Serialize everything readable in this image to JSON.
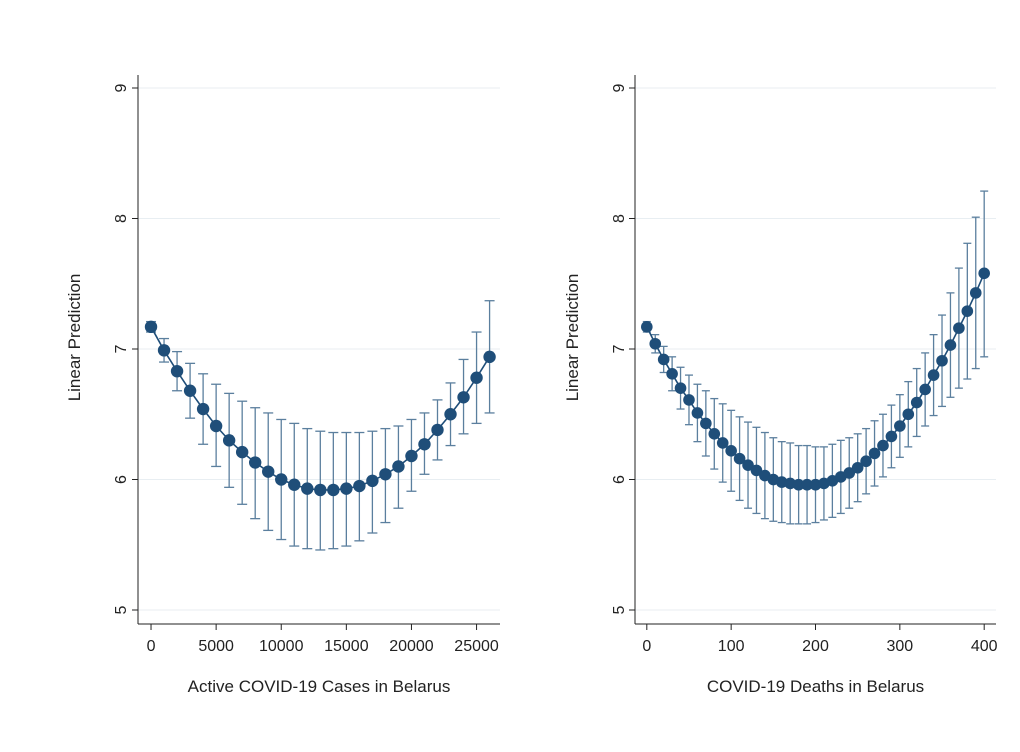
{
  "chart_data": [
    {
      "type": "scatter",
      "title": "",
      "xlabel": "Active COVID-19 Cases in Belarus",
      "ylabel": "Linear Prediction",
      "xlim": [
        -1000,
        26800
      ],
      "ylim": [
        5,
        9
      ],
      "xticks": [
        0,
        5000,
        10000,
        15000,
        20000,
        25000
      ],
      "yticks": [
        5,
        6,
        7,
        8,
        9
      ],
      "grid": true,
      "legend": "none",
      "color": "#1f4e79",
      "errorbar_color": "#5b7f9e",
      "series": [
        {
          "x": [
            0,
            1000,
            2000,
            3000,
            4000,
            5000,
            6000,
            7000,
            8000,
            9000,
            10000,
            11000,
            12000,
            13000,
            14000,
            15000,
            16000,
            17000,
            18000,
            19000,
            20000,
            21000,
            22000,
            23000,
            24000,
            25000,
            26000
          ],
          "y": [
            7.17,
            6.99,
            6.83,
            6.68,
            6.54,
            6.41,
            6.3,
            6.21,
            6.13,
            6.06,
            6.0,
            5.96,
            5.93,
            5.92,
            5.92,
            5.93,
            5.95,
            5.99,
            6.04,
            6.1,
            6.18,
            6.27,
            6.38,
            6.5,
            6.63,
            6.78,
            6.94
          ],
          "lower": [
            7.13,
            6.9,
            6.68,
            6.47,
            6.27,
            6.1,
            5.94,
            5.81,
            5.7,
            5.61,
            5.54,
            5.49,
            5.47,
            5.46,
            5.47,
            5.49,
            5.53,
            5.59,
            5.67,
            5.78,
            5.91,
            6.04,
            6.15,
            6.26,
            6.35,
            6.43,
            6.51
          ],
          "upper": [
            7.21,
            7.08,
            6.98,
            6.89,
            6.81,
            6.73,
            6.66,
            6.6,
            6.55,
            6.51,
            6.46,
            6.43,
            6.39,
            6.37,
            6.36,
            6.36,
            6.36,
            6.37,
            6.39,
            6.41,
            6.46,
            6.51,
            6.61,
            6.74,
            6.92,
            7.13,
            7.37
          ]
        }
      ]
    },
    {
      "type": "scatter",
      "title": "",
      "xlabel": "COVID-19 Deaths in Belarus",
      "ylabel": "Linear Prediction",
      "xlim": [
        -14,
        414
      ],
      "ylim": [
        5,
        9
      ],
      "xticks": [
        0,
        100,
        200,
        300,
        400
      ],
      "yticks": [
        5,
        6,
        7,
        8,
        9
      ],
      "grid": true,
      "legend": "none",
      "color": "#1f4e79",
      "errorbar_color": "#5b7f9e",
      "series": [
        {
          "x": [
            0,
            10,
            20,
            30,
            40,
            50,
            60,
            70,
            80,
            90,
            100,
            110,
            120,
            130,
            140,
            150,
            160,
            170,
            180,
            190,
            200,
            210,
            220,
            230,
            240,
            250,
            260,
            270,
            280,
            290,
            300,
            310,
            320,
            330,
            340,
            350,
            360,
            370,
            380,
            390,
            400
          ],
          "y": [
            7.17,
            7.04,
            6.92,
            6.81,
            6.7,
            6.61,
            6.51,
            6.43,
            6.35,
            6.28,
            6.22,
            6.16,
            6.11,
            6.07,
            6.03,
            6.0,
            5.98,
            5.97,
            5.96,
            5.96,
            5.96,
            5.97,
            5.99,
            6.02,
            6.05,
            6.09,
            6.14,
            6.2,
            6.26,
            6.33,
            6.41,
            6.5,
            6.59,
            6.69,
            6.8,
            6.91,
            7.03,
            7.16,
            7.29,
            7.43,
            7.58
          ],
          "lower": [
            7.13,
            6.97,
            6.82,
            6.68,
            6.54,
            6.42,
            6.29,
            6.18,
            6.08,
            5.98,
            5.91,
            5.84,
            5.78,
            5.74,
            5.7,
            5.68,
            5.67,
            5.66,
            5.66,
            5.66,
            5.67,
            5.69,
            5.71,
            5.74,
            5.78,
            5.83,
            5.89,
            5.95,
            6.02,
            6.09,
            6.17,
            6.25,
            6.33,
            6.41,
            6.49,
            6.56,
            6.63,
            6.7,
            6.77,
            6.85,
            6.94
          ],
          "upper": [
            7.21,
            7.11,
            7.02,
            6.94,
            6.86,
            6.8,
            6.73,
            6.68,
            6.62,
            6.58,
            6.53,
            6.48,
            6.44,
            6.4,
            6.36,
            6.32,
            6.29,
            6.28,
            6.26,
            6.26,
            6.25,
            6.25,
            6.27,
            6.3,
            6.32,
            6.35,
            6.39,
            6.45,
            6.5,
            6.57,
            6.65,
            6.75,
            6.85,
            6.97,
            7.11,
            7.26,
            7.43,
            7.62,
            7.81,
            8.01,
            8.21
          ]
        }
      ]
    }
  ]
}
